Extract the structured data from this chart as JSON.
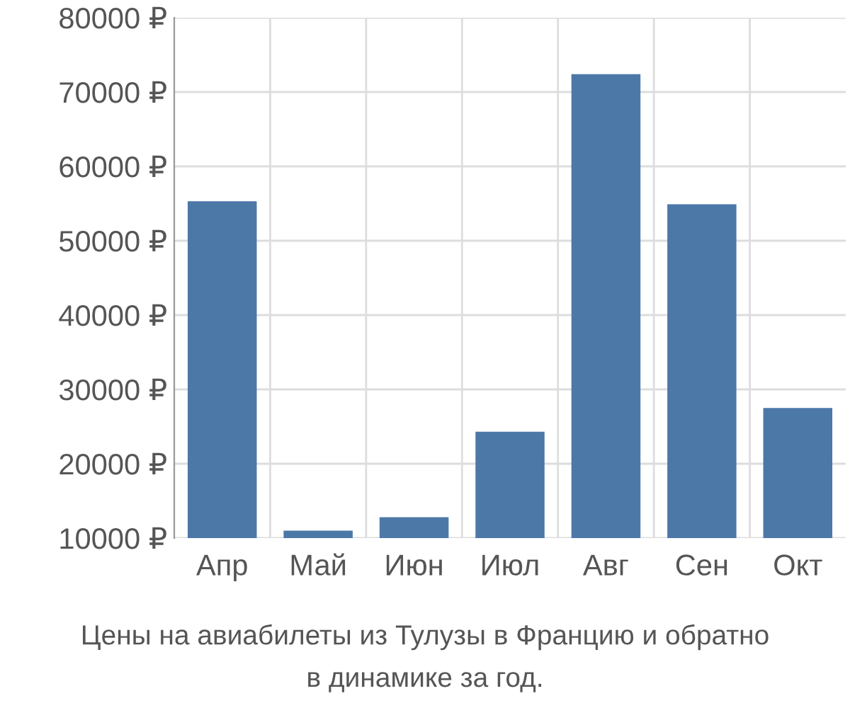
{
  "chart_data": {
    "type": "bar",
    "categories": [
      "Апр",
      "Май",
      "Июн",
      "Июл",
      "Авг",
      "Сен",
      "Окт"
    ],
    "values": [
      55300,
      11000,
      12800,
      24300,
      72400,
      54900,
      27500
    ],
    "color": "#4c78a8",
    "ylim": [
      10000,
      80000
    ],
    "yticks": [
      {
        "value": 10000,
        "label": "10000 ₽"
      },
      {
        "value": 20000,
        "label": "20000 ₽"
      },
      {
        "value": 30000,
        "label": "30000 ₽"
      },
      {
        "value": 40000,
        "label": "40000 ₽"
      },
      {
        "value": 50000,
        "label": "50000 ₽"
      },
      {
        "value": 60000,
        "label": "60000 ₽"
      },
      {
        "value": 70000,
        "label": "70000 ₽"
      },
      {
        "value": 80000,
        "label": "80000 ₽"
      }
    ],
    "grid": true,
    "annotations": [
      "Цены на авиабилеты из Тулузы в Францию и обратно",
      "в динамике за год."
    ]
  }
}
